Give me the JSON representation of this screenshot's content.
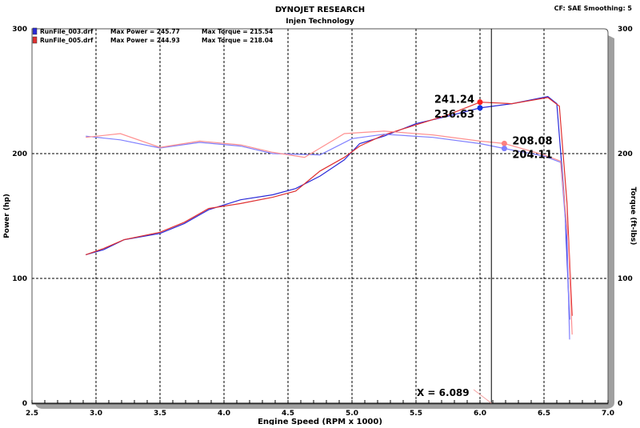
{
  "header": {
    "title": "DYNOJET RESEARCH",
    "subtitle": "Injen Technology",
    "settings": "CF: SAE  Smoothing: 5"
  },
  "legend": [
    {
      "file": "RunFile_003.drf",
      "power": "Max Power = 245.77",
      "torque": "Max Torque = 215.54",
      "color": "#2a2ad8"
    },
    {
      "file": "RunFile_005.drf",
      "power": "Max Power = 244.93",
      "torque": "Max Torque = 218.04",
      "color": "#e03030"
    }
  ],
  "cursor": {
    "label": "X = 6.089",
    "x": 6.089
  },
  "chart_data": {
    "type": "line",
    "title": "DYNOJET RESEARCH",
    "subtitle": "Injen Technology",
    "xlabel": "Engine Speed (RPM x 1000)",
    "ylabel": "Power (hp)",
    "y2label": "Torque (ft-lbs)",
    "xlim": [
      2.5,
      7.0
    ],
    "ylim": [
      0,
      300
    ],
    "y2lim": [
      0,
      300
    ],
    "xticks": [
      "2.5",
      "3.0",
      "3.5",
      "4.0",
      "4.5",
      "5.0",
      "5.5",
      "6.0",
      "6.5",
      "7.0"
    ],
    "yticks": [
      "0",
      "100",
      "200",
      "300"
    ],
    "y2ticks": [
      "0",
      "100",
      "200",
      "300"
    ],
    "grid": true,
    "legend_position": "top-left",
    "series": [
      {
        "name": "RunFile_003.drf Power",
        "color": "#2a2ad8",
        "x": [
          2.92,
          3.06,
          3.22,
          3.5,
          3.69,
          3.88,
          4.13,
          4.38,
          4.56,
          4.75,
          4.94,
          5.06,
          5.25,
          5.5,
          5.75,
          6.0,
          6.25,
          6.53,
          6.6,
          6.66,
          6.7
        ],
        "y": [
          119,
          123,
          131,
          136,
          144,
          155,
          163,
          167,
          172,
          182,
          195,
          208,
          214,
          224,
          230,
          236.63,
          240,
          245.77,
          240,
          163,
          67
        ]
      },
      {
        "name": "RunFile_005.drf Power",
        "color": "#e03030",
        "x": [
          2.92,
          3.06,
          3.22,
          3.5,
          3.69,
          3.88,
          4.13,
          4.38,
          4.56,
          4.75,
          4.94,
          5.06,
          5.25,
          5.5,
          5.75,
          6.0,
          6.25,
          6.53,
          6.62,
          6.68,
          6.72
        ],
        "y": [
          119,
          124,
          131,
          137,
          145,
          156,
          160,
          165,
          170,
          186,
          197,
          206,
          215,
          223,
          231,
          241.24,
          240,
          244.93,
          238,
          160,
          70
        ]
      },
      {
        "name": "RunFile_003.drf Torque",
        "color": "#8080ff",
        "x": [
          2.92,
          3.19,
          3.5,
          3.81,
          4.13,
          4.38,
          4.75,
          5.0,
          5.25,
          5.63,
          6.0,
          6.19,
          6.5,
          6.63,
          6.68,
          6.7
        ],
        "y": [
          214,
          211,
          204.5,
          209,
          206,
          200,
          199,
          212,
          215.54,
          213,
          208,
          204.11,
          198,
          193,
          131,
          51
        ]
      },
      {
        "name": "RunFile_005.drf Torque",
        "color": "#ff9090",
        "x": [
          2.92,
          3.19,
          3.5,
          3.81,
          4.13,
          4.38,
          4.63,
          4.94,
          5.25,
          5.63,
          6.0,
          6.19,
          6.5,
          6.63,
          6.69,
          6.72
        ],
        "y": [
          213,
          216,
          205,
          210,
          207,
          201,
          197,
          216,
          218.04,
          215,
          210,
          208.08,
          199,
          194,
          130,
          55
        ]
      }
    ],
    "markers": [
      {
        "label": "241.24",
        "x": 6.0,
        "y": 241.24,
        "color": "#ff2020"
      },
      {
        "label": "236.63",
        "x": 6.0,
        "y": 236.63,
        "color": "#1030e0"
      },
      {
        "label": "208.08",
        "x": 6.19,
        "y": 208.08,
        "color": "#ff8080"
      },
      {
        "label": "204.11",
        "x": 6.19,
        "y": 204.11,
        "color": "#8080ff"
      }
    ]
  }
}
